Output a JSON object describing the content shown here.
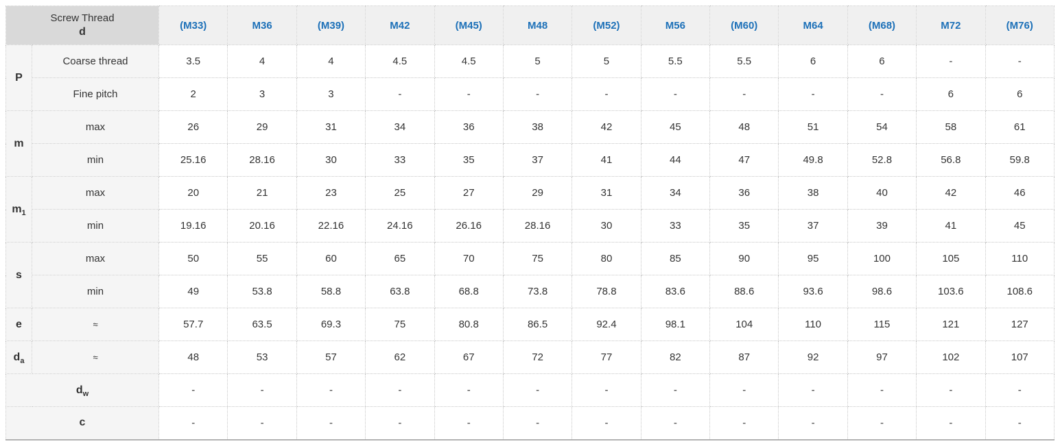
{
  "colors": {
    "header_corner_bg": "#d9d9d9",
    "header_col_bg": "#f0f0f0",
    "label_bg": "#f5f5f5",
    "header_text_blue": "#1c70b8",
    "body_text": "#333333",
    "grid_dotted": "#c6c6c6",
    "table_bottom_border": "#b3b3b3"
  },
  "table": {
    "corner_header": {
      "line1": "Screw Thread",
      "line2": "d"
    },
    "columns": [
      "(M33)",
      "M36",
      "(M39)",
      "M42",
      "(M45)",
      "M48",
      "(M52)",
      "M56",
      "(M60)",
      "M64",
      "(M68)",
      "M72",
      "(M76)"
    ],
    "row_groups": [
      {
        "label_base": "P",
        "label_sub": "",
        "full_span": false,
        "rows": [
          {
            "label": "Coarse thread",
            "values": [
              "3.5",
              "4",
              "4",
              "4.5",
              "4.5",
              "5",
              "5",
              "5.5",
              "5.5",
              "6",
              "6",
              "-",
              "-"
            ]
          },
          {
            "label": "Fine pitch",
            "values": [
              "2",
              "3",
              "3",
              "-",
              "-",
              "-",
              "-",
              "-",
              "-",
              "-",
              "-",
              "6",
              "6"
            ]
          }
        ]
      },
      {
        "label_base": "m",
        "label_sub": "",
        "full_span": false,
        "rows": [
          {
            "label": "max",
            "values": [
              "26",
              "29",
              "31",
              "34",
              "36",
              "38",
              "42",
              "45",
              "48",
              "51",
              "54",
              "58",
              "61"
            ]
          },
          {
            "label": "min",
            "values": [
              "25.16",
              "28.16",
              "30",
              "33",
              "35",
              "37",
              "41",
              "44",
              "47",
              "49.8",
              "52.8",
              "56.8",
              "59.8"
            ]
          }
        ]
      },
      {
        "label_base": "m",
        "label_sub": "1",
        "full_span": false,
        "rows": [
          {
            "label": "max",
            "values": [
              "20",
              "21",
              "23",
              "25",
              "27",
              "29",
              "31",
              "34",
              "36",
              "38",
              "40",
              "42",
              "46"
            ]
          },
          {
            "label": "min",
            "values": [
              "19.16",
              "20.16",
              "22.16",
              "24.16",
              "26.16",
              "28.16",
              "30",
              "33",
              "35",
              "37",
              "39",
              "41",
              "45"
            ]
          }
        ]
      },
      {
        "label_base": "s",
        "label_sub": "",
        "full_span": false,
        "rows": [
          {
            "label": "max",
            "values": [
              "50",
              "55",
              "60",
              "65",
              "70",
              "75",
              "80",
              "85",
              "90",
              "95",
              "100",
              "105",
              "110"
            ]
          },
          {
            "label": "min",
            "values": [
              "49",
              "53.8",
              "58.8",
              "63.8",
              "68.8",
              "73.8",
              "78.8",
              "83.6",
              "88.6",
              "93.6",
              "98.6",
              "103.6",
              "108.6"
            ]
          }
        ]
      },
      {
        "label_base": "e",
        "label_sub": "",
        "full_span": false,
        "rows": [
          {
            "label": "≈",
            "values": [
              "57.7",
              "63.5",
              "69.3",
              "75",
              "80.8",
              "86.5",
              "92.4",
              "98.1",
              "104",
              "110",
              "115",
              "121",
              "127"
            ]
          }
        ]
      },
      {
        "label_base": "d",
        "label_sub": "a",
        "full_span": false,
        "rows": [
          {
            "label": "≈",
            "values": [
              "48",
              "53",
              "57",
              "62",
              "67",
              "72",
              "77",
              "82",
              "87",
              "92",
              "97",
              "102",
              "107"
            ]
          }
        ]
      },
      {
        "label_base": "d",
        "label_sub": "w",
        "full_span": true,
        "rows": [
          {
            "label": "",
            "values": [
              "-",
              "-",
              "-",
              "-",
              "-",
              "-",
              "-",
              "-",
              "-",
              "-",
              "-",
              "-",
              "-"
            ]
          }
        ]
      },
      {
        "label_base": "c",
        "label_sub": "",
        "full_span": true,
        "rows": [
          {
            "label": "",
            "values": [
              "-",
              "-",
              "-",
              "-",
              "-",
              "-",
              "-",
              "-",
              "-",
              "-",
              "-",
              "-",
              "-"
            ]
          }
        ]
      }
    ]
  }
}
